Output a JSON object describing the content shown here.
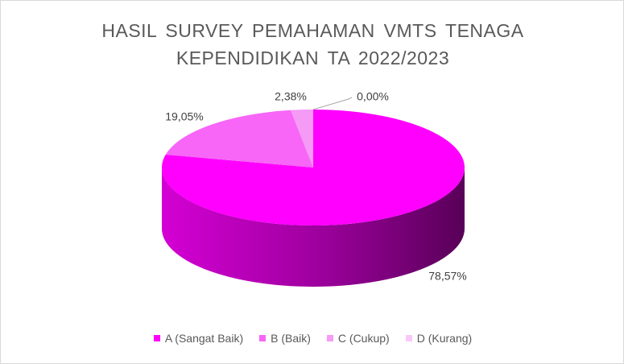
{
  "chart_data": {
    "type": "pie3d",
    "title": "HASIL SURVEY PEMAHAMAN VMTS TENAGA KEPENDIDIKAN TA 2022/2023",
    "categories": [
      "A (Sangat Baik)",
      "B (Baik)",
      "C (Cukup)",
      "D (Kurang)"
    ],
    "values": [
      78.57,
      19.05,
      2.38,
      0.0
    ],
    "value_labels": [
      "78,57%",
      "19,05%",
      "2,38%",
      "0,00%"
    ],
    "colors": [
      "#ff00ff",
      "#f766f7",
      "#f59af5",
      "#f9c8f9"
    ],
    "legend": "bottom"
  }
}
